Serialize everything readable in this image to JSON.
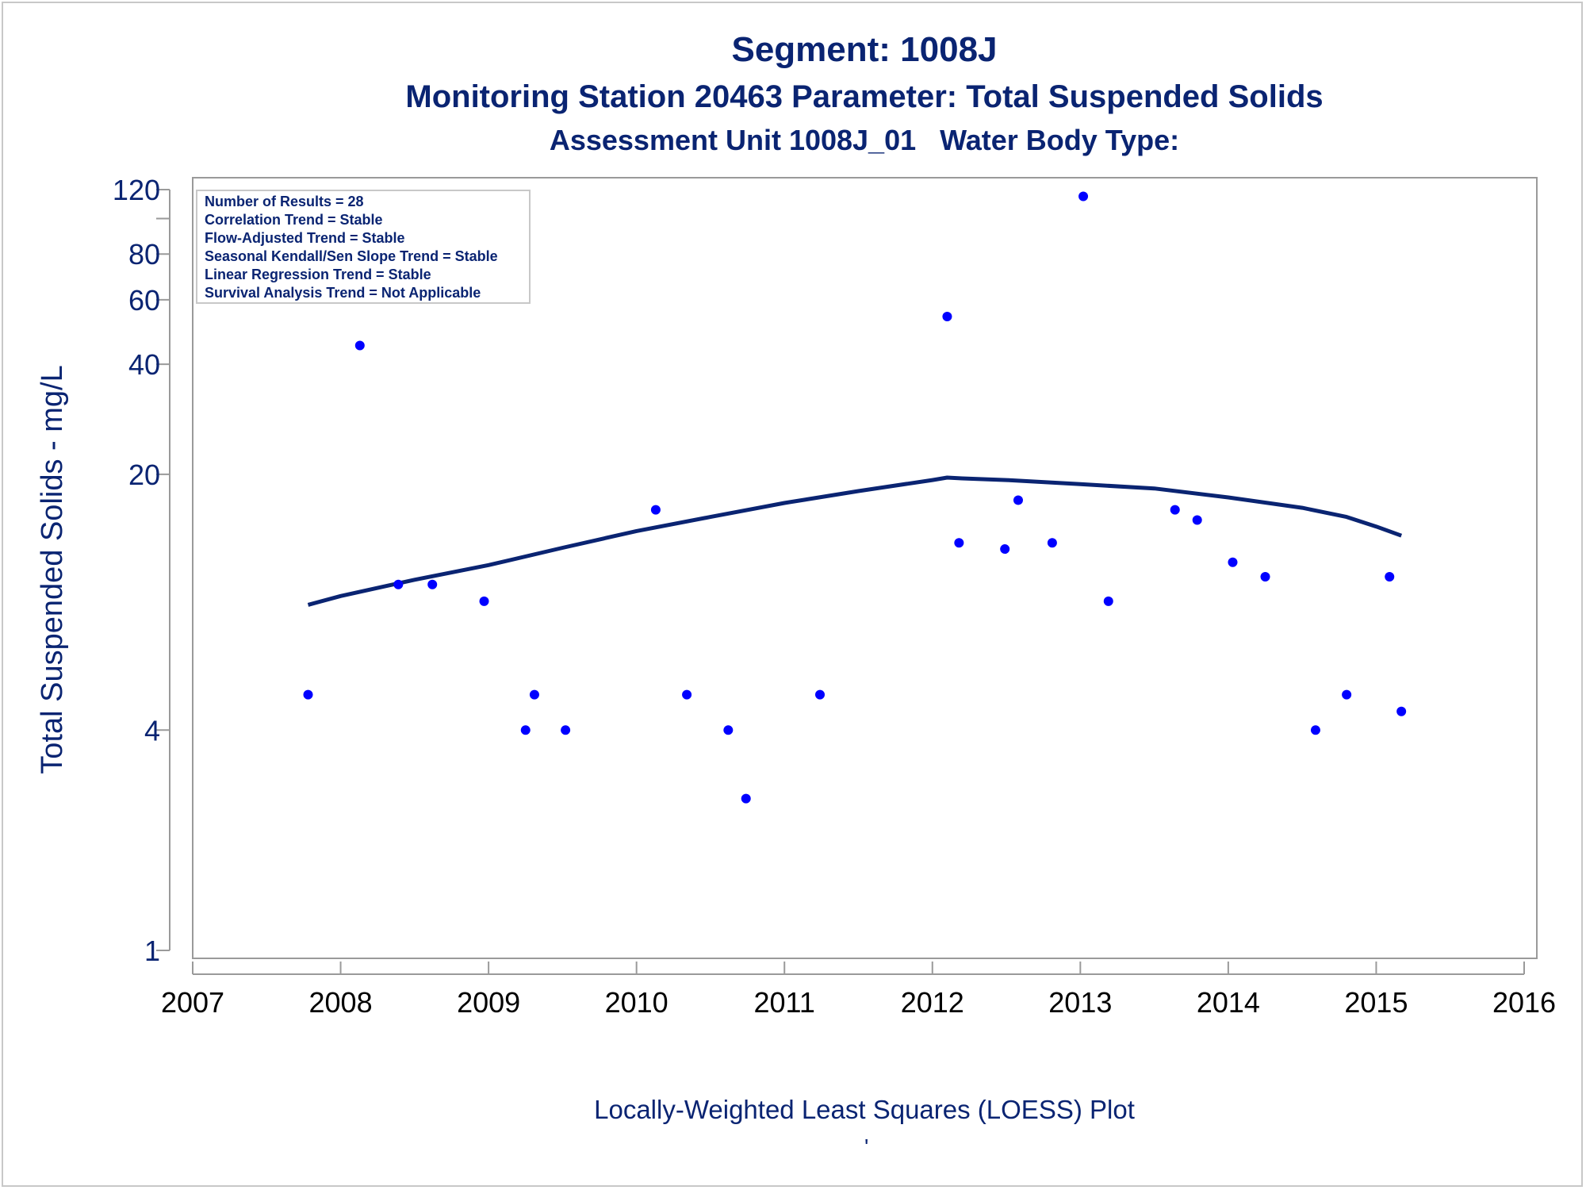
{
  "titles": {
    "line1": "Segment: 1008J",
    "line2": "Monitoring Station 20463 Parameter: Total Suspended Solids",
    "line3": "Assessment Unit 1008J_01   Water Body Type:"
  },
  "footnote": "Locally-Weighted Least Squares (LOESS) Plot",
  "footnote_mark": "'",
  "colors": {
    "text": "#0a2472",
    "points": "#0000ff",
    "loess": "#0a2472",
    "axis": "#9a9a9a"
  },
  "legend_lines": [
    "Number of Results = 28",
    "Correlation Trend = Stable",
    "Flow-Adjusted Trend = Stable",
    "Seasonal Kendall/Sen Slope Trend = Stable",
    "Linear Regression Trend = Stable",
    "Survival Analysis Trend = Not Applicable"
  ],
  "chart_data": {
    "type": "scatter",
    "ylabel": "Total Suspended Solids - mg/L",
    "xlabel": "",
    "yscale": "log",
    "xlim": [
      2007,
      2016
    ],
    "ylim": [
      1,
      120
    ],
    "x_ticks": [
      2007,
      2008,
      2009,
      2010,
      2011,
      2012,
      2013,
      2014,
      2015,
      2016
    ],
    "y_ticks": [
      1,
      4,
      20,
      40,
      60,
      80,
      120
    ],
    "y_minor_ticks": [
      100
    ],
    "grid": false,
    "legend_position": "top-left",
    "series": [
      {
        "type": "scatter",
        "x": [
          2007.78,
          2008.13,
          2008.39,
          2008.62,
          2008.97,
          2009.25,
          2009.31,
          2009.52,
          2010.13,
          2010.34,
          2010.62,
          2010.74,
          2011.24,
          2012.1,
          2012.18,
          2012.49,
          2012.58,
          2012.81,
          2013.02,
          2013.19,
          2013.64,
          2013.79,
          2014.03,
          2014.25,
          2014.59,
          2014.8,
          2015.09,
          2015.17
        ],
        "y": [
          5,
          45,
          10,
          10,
          9,
          4,
          5,
          4,
          16,
          5,
          4,
          2.6,
          5,
          54,
          13,
          12.5,
          17,
          13,
          115,
          9,
          16,
          15,
          11.5,
          10.5,
          4,
          5,
          10.5,
          4.5
        ]
      },
      {
        "type": "line",
        "x": [
          2007.78,
          2008.0,
          2008.5,
          2009.0,
          2009.5,
          2010.0,
          2010.5,
          2011.0,
          2011.5,
          2012.0,
          2012.1,
          2012.2,
          2012.5,
          2013.0,
          2013.5,
          2014.0,
          2014.5,
          2014.8,
          2015.0,
          2015.17
        ],
        "y": [
          8.8,
          9.3,
          10.3,
          11.3,
          12.6,
          14.0,
          15.3,
          16.7,
          18.0,
          19.3,
          19.6,
          19.5,
          19.3,
          18.8,
          18.3,
          17.3,
          16.2,
          15.3,
          14.4,
          13.6
        ]
      }
    ]
  }
}
